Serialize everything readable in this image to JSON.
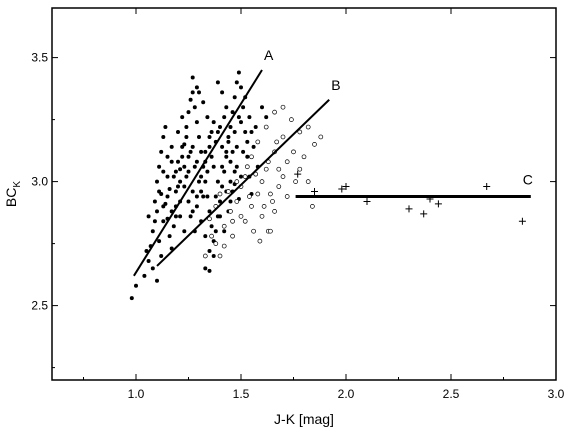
{
  "chart_data": {
    "type": "scatter",
    "title": "",
    "xlabel": "J-K [mag]",
    "ylabel_main": "BC",
    "ylabel_sub": "K",
    "xlim": [
      0.6,
      3.0
    ],
    "ylim": [
      2.2,
      3.7
    ],
    "xticks": [
      "1.0",
      "1.5",
      "2.0",
      "2.5",
      "3.0"
    ],
    "yticks": [
      "2.5",
      "3.0",
      "3.5"
    ],
    "grid": false,
    "legend": "none",
    "series": [
      {
        "marker": "filled-dot",
        "points": [
          [
            0.98,
            2.53
          ],
          [
            1.0,
            2.58
          ],
          [
            1.04,
            2.62
          ],
          [
            1.06,
            2.68
          ],
          [
            1.05,
            2.72
          ],
          [
            1.08,
            2.65
          ],
          [
            1.1,
            2.6
          ],
          [
            1.12,
            2.7
          ],
          [
            1.08,
            2.8
          ],
          [
            1.1,
            2.88
          ],
          [
            1.12,
            2.95
          ],
          [
            1.09,
            2.92
          ],
          [
            1.1,
            3.0
          ],
          [
            1.11,
            3.06
          ],
          [
            1.12,
            3.12
          ],
          [
            1.13,
            3.18
          ],
          [
            1.14,
            3.22
          ],
          [
            1.15,
            2.85
          ],
          [
            1.16,
            2.78
          ],
          [
            1.17,
            2.73
          ],
          [
            1.18,
            2.82
          ],
          [
            1.19,
            2.9
          ],
          [
            1.2,
            2.98
          ],
          [
            1.21,
            3.05
          ],
          [
            1.22,
            3.1
          ],
          [
            1.23,
            3.15
          ],
          [
            1.24,
            3.22
          ],
          [
            1.25,
            3.28
          ],
          [
            1.26,
            3.33
          ],
          [
            1.27,
            3.36
          ],
          [
            1.28,
            3.3
          ],
          [
            1.29,
            3.24
          ],
          [
            1.3,
            3.18
          ],
          [
            1.31,
            3.12
          ],
          [
            1.32,
            3.06
          ],
          [
            1.33,
            3.0
          ],
          [
            1.34,
            2.94
          ],
          [
            1.35,
            2.88
          ],
          [
            1.36,
            2.82
          ],
          [
            1.37,
            2.76
          ],
          [
            1.38,
            2.8
          ],
          [
            1.39,
            2.86
          ],
          [
            1.4,
            2.92
          ],
          [
            1.41,
            2.98
          ],
          [
            1.42,
            3.04
          ],
          [
            1.43,
            3.1
          ],
          [
            1.44,
            3.16
          ],
          [
            1.45,
            3.22
          ],
          [
            1.46,
            3.28
          ],
          [
            1.47,
            3.34
          ],
          [
            1.48,
            3.4
          ],
          [
            1.49,
            3.44
          ],
          [
            1.5,
            3.38
          ],
          [
            1.51,
            3.3
          ],
          [
            1.52,
            3.2
          ],
          [
            1.53,
            3.1
          ],
          [
            1.54,
            3.02
          ],
          [
            1.55,
            2.95
          ],
          [
            1.13,
            2.84
          ],
          [
            1.14,
            2.91
          ],
          [
            1.16,
            2.97
          ],
          [
            1.18,
            3.02
          ],
          [
            1.2,
            3.08
          ],
          [
            1.22,
            3.14
          ],
          [
            1.24,
            3.18
          ],
          [
            1.26,
            3.12
          ],
          [
            1.28,
            3.06
          ],
          [
            1.3,
            3.0
          ],
          [
            1.32,
            2.94
          ],
          [
            1.34,
            3.04
          ],
          [
            1.36,
            3.1
          ],
          [
            1.38,
            3.16
          ],
          [
            1.4,
            3.22
          ],
          [
            1.42,
            3.26
          ],
          [
            1.44,
            3.18
          ],
          [
            1.46,
            3.12
          ],
          [
            1.48,
            3.06
          ],
          [
            1.5,
            3.02
          ],
          [
            1.15,
            3.02
          ],
          [
            1.17,
            3.08
          ],
          [
            1.19,
            2.86
          ],
          [
            1.21,
            2.92
          ],
          [
            1.23,
            2.98
          ],
          [
            1.25,
            3.04
          ],
          [
            1.27,
            2.96
          ],
          [
            1.29,
            2.9
          ],
          [
            1.31,
            2.84
          ],
          [
            1.33,
            2.78
          ],
          [
            1.35,
            2.72
          ],
          [
            1.37,
            2.7
          ],
          [
            1.39,
            3.4
          ],
          [
            1.41,
            3.36
          ],
          [
            1.43,
            3.3
          ],
          [
            1.45,
            3.08
          ],
          [
            1.47,
            2.99
          ],
          [
            1.49,
            2.93
          ],
          [
            1.2,
            3.2
          ],
          [
            1.22,
            3.26
          ],
          [
            1.24,
            3.02
          ],
          [
            1.26,
            2.86
          ],
          [
            1.28,
            2.8
          ],
          [
            1.3,
            3.36
          ],
          [
            1.32,
            3.32
          ],
          [
            1.34,
            3.26
          ],
          [
            1.36,
            3.2
          ],
          [
            1.38,
            2.94
          ],
          [
            1.4,
            2.86
          ],
          [
            1.42,
            2.8
          ],
          [
            1.44,
            2.88
          ],
          [
            1.46,
            2.96
          ],
          [
            1.48,
            3.14
          ],
          [
            1.5,
            3.24
          ],
          [
            1.52,
            3.34
          ],
          [
            1.54,
            3.26
          ],
          [
            1.56,
            3.14
          ],
          [
            1.58,
            3.06
          ],
          [
            1.33,
            2.65
          ],
          [
            1.35,
            2.64
          ],
          [
            1.27,
            3.42
          ],
          [
            1.29,
            3.38
          ],
          [
            1.11,
            2.76
          ],
          [
            1.13,
            2.9
          ],
          [
            1.15,
            2.94
          ],
          [
            1.17,
            2.88
          ],
          [
            1.19,
            2.96
          ],
          [
            1.21,
            3.0
          ],
          [
            1.23,
            3.06
          ],
          [
            1.25,
            3.1
          ],
          [
            1.27,
            3.14
          ],
          [
            1.29,
            3.08
          ],
          [
            1.31,
            3.02
          ],
          [
            1.33,
            3.08
          ],
          [
            1.35,
            3.14
          ],
          [
            1.37,
            3.06
          ],
          [
            1.39,
            3.0
          ],
          [
            1.41,
            3.06
          ],
          [
            1.43,
            3.12
          ],
          [
            1.45,
            2.92
          ],
          [
            1.47,
            3.2
          ],
          [
            1.49,
            3.26
          ],
          [
            1.51,
            3.12
          ],
          [
            1.53,
            3.16
          ],
          [
            1.55,
            3.2
          ],
          [
            1.57,
            3.22
          ],
          [
            1.6,
            3.3
          ],
          [
            1.62,
            3.26
          ],
          [
            1.07,
            2.74
          ],
          [
            1.06,
            2.86
          ],
          [
            1.09,
            2.84
          ],
          [
            1.11,
            2.96
          ],
          [
            1.13,
            3.04
          ],
          [
            1.15,
            3.1
          ],
          [
            1.17,
            3.14
          ],
          [
            1.19,
            3.04
          ],
          [
            1.21,
            2.86
          ],
          [
            1.23,
            2.8
          ],
          [
            1.25,
            2.92
          ],
          [
            1.27,
            2.88
          ],
          [
            1.29,
            2.94
          ],
          [
            1.31,
            2.96
          ],
          [
            1.33,
            3.12
          ],
          [
            1.35,
            3.18
          ],
          [
            1.37,
            3.24
          ],
          [
            1.39,
            3.2
          ],
          [
            1.41,
            3.14
          ],
          [
            1.43,
            2.96
          ],
          [
            1.45,
            3.0
          ],
          [
            1.47,
            3.04
          ]
        ]
      },
      {
        "marker": "open-circle",
        "points": [
          [
            1.35,
            2.85
          ],
          [
            1.38,
            2.9
          ],
          [
            1.4,
            2.95
          ],
          [
            1.42,
            2.82
          ],
          [
            1.45,
            2.88
          ],
          [
            1.48,
            2.92
          ],
          [
            1.5,
            2.98
          ],
          [
            1.52,
            3.02
          ],
          [
            1.55,
            2.9
          ],
          [
            1.58,
            2.95
          ],
          [
            1.6,
            3.0
          ],
          [
            1.62,
            3.05
          ],
          [
            1.65,
            2.92
          ],
          [
            1.68,
            2.98
          ],
          [
            1.7,
            3.02
          ],
          [
            1.72,
            3.08
          ],
          [
            1.75,
            3.12
          ],
          [
            1.78,
            3.05
          ],
          [
            1.8,
            3.1
          ],
          [
            1.82,
            3.0
          ],
          [
            1.85,
            3.15
          ],
          [
            1.88,
            3.18
          ],
          [
            1.84,
            2.9
          ],
          [
            1.46,
            2.78
          ],
          [
            1.52,
            2.84
          ],
          [
            1.56,
            2.8
          ],
          [
            1.6,
            2.86
          ],
          [
            1.63,
            2.8
          ],
          [
            1.66,
            2.88
          ],
          [
            1.55,
            3.1
          ],
          [
            1.58,
            3.16
          ],
          [
            1.62,
            3.22
          ],
          [
            1.66,
            3.12
          ],
          [
            1.7,
            3.18
          ],
          [
            1.74,
            3.25
          ],
          [
            1.78,
            3.2
          ],
          [
            1.82,
            3.22
          ],
          [
            1.66,
            3.28
          ],
          [
            1.7,
            3.3
          ],
          [
            1.42,
            2.74
          ],
          [
            1.4,
            2.7
          ],
          [
            1.64,
            2.95
          ],
          [
            1.68,
            3.05
          ],
          [
            1.48,
            3.0
          ],
          [
            1.53,
            3.06
          ],
          [
            1.57,
            3.03
          ],
          [
            1.61,
            2.9
          ],
          [
            1.59,
            2.76
          ],
          [
            1.72,
            2.94
          ],
          [
            1.76,
            3.0
          ],
          [
            1.5,
            2.86
          ],
          [
            1.54,
            2.94
          ],
          [
            1.63,
            3.08
          ],
          [
            1.67,
            3.16
          ],
          [
            1.44,
            2.96
          ],
          [
            1.46,
            2.84
          ],
          [
            1.64,
            2.8
          ],
          [
            1.36,
            2.78
          ],
          [
            1.33,
            2.7
          ],
          [
            1.38,
            2.75
          ]
        ]
      },
      {
        "marker": "plus",
        "points": [
          [
            1.77,
            3.03
          ],
          [
            1.85,
            2.96
          ],
          [
            1.98,
            2.97
          ],
          [
            2.0,
            2.98
          ],
          [
            2.1,
            2.92
          ],
          [
            2.3,
            2.89
          ],
          [
            2.37,
            2.87
          ],
          [
            2.4,
            2.93
          ],
          [
            2.44,
            2.91
          ],
          [
            2.67,
            2.98
          ],
          [
            2.84,
            2.84
          ]
        ]
      }
    ],
    "lines": [
      {
        "label": "A",
        "x": [
          0.99,
          1.6
        ],
        "y": [
          2.62,
          3.45
        ]
      },
      {
        "label": "B",
        "x": [
          1.1,
          1.92
        ],
        "y": [
          2.66,
          3.33
        ]
      },
      {
        "label": "C",
        "x": [
          1.76,
          2.88
        ],
        "y": [
          2.94,
          2.94
        ]
      }
    ]
  }
}
